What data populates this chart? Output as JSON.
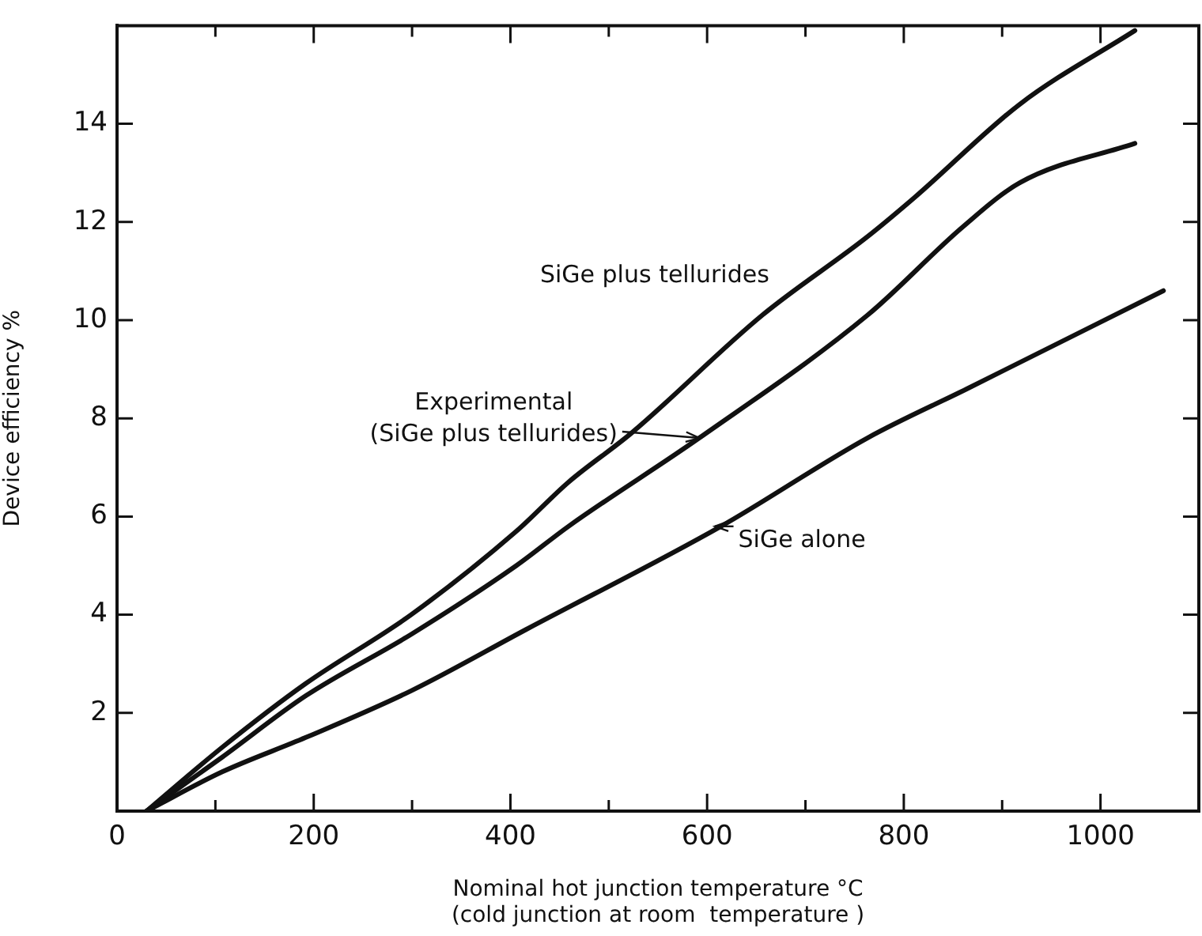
{
  "chart_data": {
    "type": "line",
    "xlabel": "Nominal hot junction temperature °C\n(cold junction at room  temperature )",
    "ylabel": "Device efficiency %",
    "xlim": [
      0,
      1100
    ],
    "ylim": [
      0,
      16
    ],
    "xticks": [
      0,
      {
        "value": 100,
        "label": null
      },
      200,
      {
        "value": 300,
        "label": null
      },
      400,
      {
        "value": 500,
        "label": null
      },
      600,
      {
        "value": 700,
        "label": null
      },
      800,
      {
        "value": 900,
        "label": null
      },
      1000
    ],
    "yticks": [
      {
        "value": 0,
        "label": null
      },
      2,
      4,
      6,
      8,
      10,
      12,
      14
    ],
    "grid": false,
    "legend": false,
    "marker": "none",
    "line_style": "solid",
    "series": [
      {
        "color": "#111111",
        "x": [
          30,
          107,
          192,
          299,
          406,
          459,
          523,
          656,
          763,
          811,
          918,
          1035
        ],
        "values": [
          0,
          1.3,
          2.6,
          4.0,
          5.7,
          6.7,
          7.7,
          10.1,
          11.7,
          12.5,
          14.4,
          15.9
        ]
      },
      {
        "color": "#111111",
        "x": [
          30,
          107,
          192,
          299,
          406,
          459,
          592,
          763,
          860,
          918,
          1035
        ],
        "values": [
          0,
          1.1,
          2.35,
          3.6,
          5.0,
          5.8,
          7.6,
          10.1,
          11.9,
          12.8,
          13.6
        ]
      },
      {
        "color": "#111111",
        "x": [
          30,
          107,
          192,
          299,
          416,
          614,
          763,
          864,
          1064
        ],
        "values": [
          0,
          0.8,
          1.5,
          2.45,
          3.7,
          5.8,
          7.6,
          8.6,
          10.6
        ]
      }
    ],
    "annotations": [
      "SiGe plus tellurides",
      {
        "text": "Experimental\n(SiGe plus tellurides)",
        "x": 592,
        "y": 7.6
      },
      {
        "text": "SiGe alone",
        "x": 608,
        "y": 5.8
      }
    ]
  }
}
